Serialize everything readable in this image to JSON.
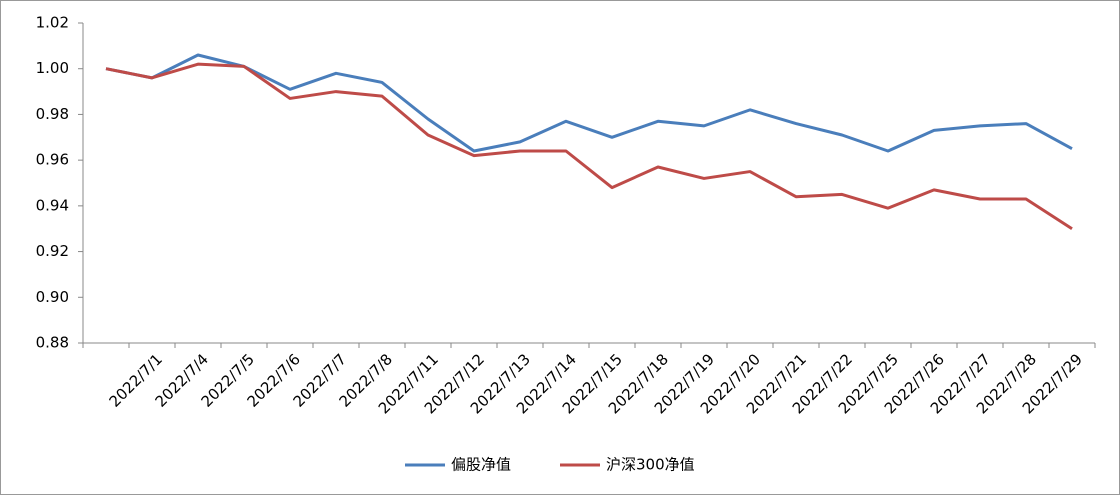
{
  "chart_data": {
    "type": "line",
    "categories": [
      null,
      "2022/7/1",
      "2022/7/4",
      "2022/7/5",
      "2022/7/6",
      "2022/7/7",
      "2022/7/8",
      "2022/7/11",
      "2022/7/12",
      "2022/7/13",
      "2022/7/14",
      "2022/7/15",
      "2022/7/18",
      "2022/7/19",
      "2022/7/20",
      "2022/7/21",
      "2022/7/22",
      "2022/7/25",
      "2022/7/26",
      "2022/7/27",
      "2022/7/28",
      "2022/7/29"
    ],
    "series": [
      {
        "name": "偏股净值",
        "color": "#4a7ebb",
        "values": [
          1.0,
          0.996,
          1.006,
          1.001,
          0.991,
          0.998,
          0.994,
          0.978,
          0.964,
          0.968,
          0.977,
          0.97,
          0.977,
          0.975,
          0.982,
          0.976,
          0.971,
          0.964,
          0.973,
          0.975,
          0.976,
          0.965
        ]
      },
      {
        "name": "沪深300净值",
        "color": "#be4b48",
        "values": [
          1.0,
          0.996,
          1.002,
          1.001,
          0.987,
          0.99,
          0.988,
          0.971,
          0.962,
          0.964,
          0.964,
          0.948,
          0.957,
          0.952,
          0.955,
          0.944,
          0.945,
          0.939,
          0.947,
          0.943,
          0.943,
          0.93
        ]
      }
    ],
    "ylim": [
      0.88,
      1.02
    ],
    "yticks": [
      {
        "value": 0.88,
        "label": "0.88"
      },
      {
        "value": 0.9,
        "label": "0.90"
      },
      {
        "value": 0.92,
        "label": "0.92"
      },
      {
        "value": 0.94,
        "label": "0.94"
      },
      {
        "value": 0.96,
        "label": "0.96"
      },
      {
        "value": 0.98,
        "label": "0.98"
      },
      {
        "value": 1.0,
        "label": "1.00"
      },
      {
        "value": 1.02,
        "label": "1.02"
      }
    ],
    "legend": "bottom"
  }
}
